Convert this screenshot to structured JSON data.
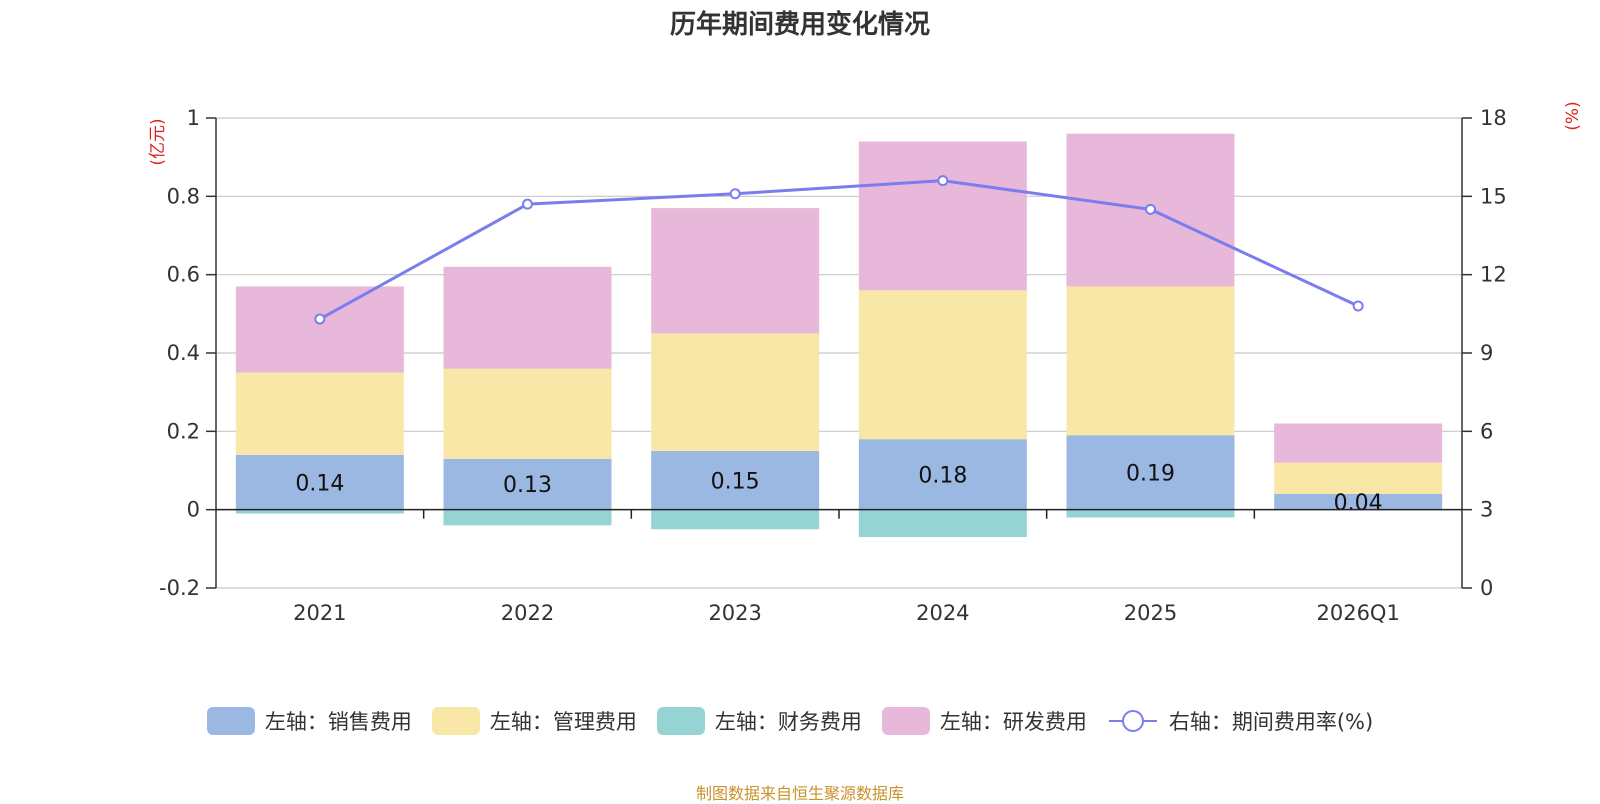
{
  "chart_data": {
    "type": "bar",
    "title": "历年期间费用变化情况",
    "categories": [
      "2021",
      "2022",
      "2023",
      "2024",
      "2025",
      "2026Q1"
    ],
    "left_axis": {
      "unit": "(亿元)",
      "ylim": [
        -0.2,
        1
      ],
      "ticks": [
        "-0.2",
        "0",
        "0.2",
        "0.4",
        "0.6",
        "0.8",
        "1"
      ],
      "tick_values": [
        -0.2,
        0,
        0.2,
        0.4,
        0.6,
        0.8,
        1
      ]
    },
    "right_axis": {
      "unit": "(%)",
      "ylim": [
        0,
        18
      ],
      "ticks": [
        "0",
        "3",
        "6",
        "9",
        "12",
        "15",
        "18"
      ],
      "tick_values": [
        0,
        3,
        6,
        9,
        12,
        15,
        18
      ]
    },
    "series": [
      {
        "name": "左轴：销售费用",
        "color": "#9bb8e2",
        "values": [
          0.14,
          0.13,
          0.15,
          0.18,
          0.19,
          0.04
        ],
        "labels": [
          "0.14",
          "0.13",
          "0.15",
          "0.18",
          "0.19",
          "0.04"
        ]
      },
      {
        "name": "左轴：管理费用",
        "color": "#f8e7a6",
        "values": [
          0.21,
          0.23,
          0.3,
          0.38,
          0.38,
          0.08
        ]
      },
      {
        "name": "左轴：财务费用",
        "color": "#96d4d4",
        "values": [
          -0.01,
          -0.04,
          -0.05,
          -0.07,
          -0.02,
          0.0
        ]
      },
      {
        "name": "左轴：研发费用",
        "color": "#e7b8d9",
        "values": [
          0.22,
          0.26,
          0.32,
          0.38,
          0.39,
          0.1
        ]
      }
    ],
    "line_series": {
      "name": "右轴：期间费用率(%)",
      "color": "#7b7cee",
      "axis": "right",
      "values": [
        10.3,
        14.7,
        15.1,
        15.6,
        14.5,
        10.8
      ]
    }
  },
  "footer": "制图数据来自恒生聚源数据库"
}
